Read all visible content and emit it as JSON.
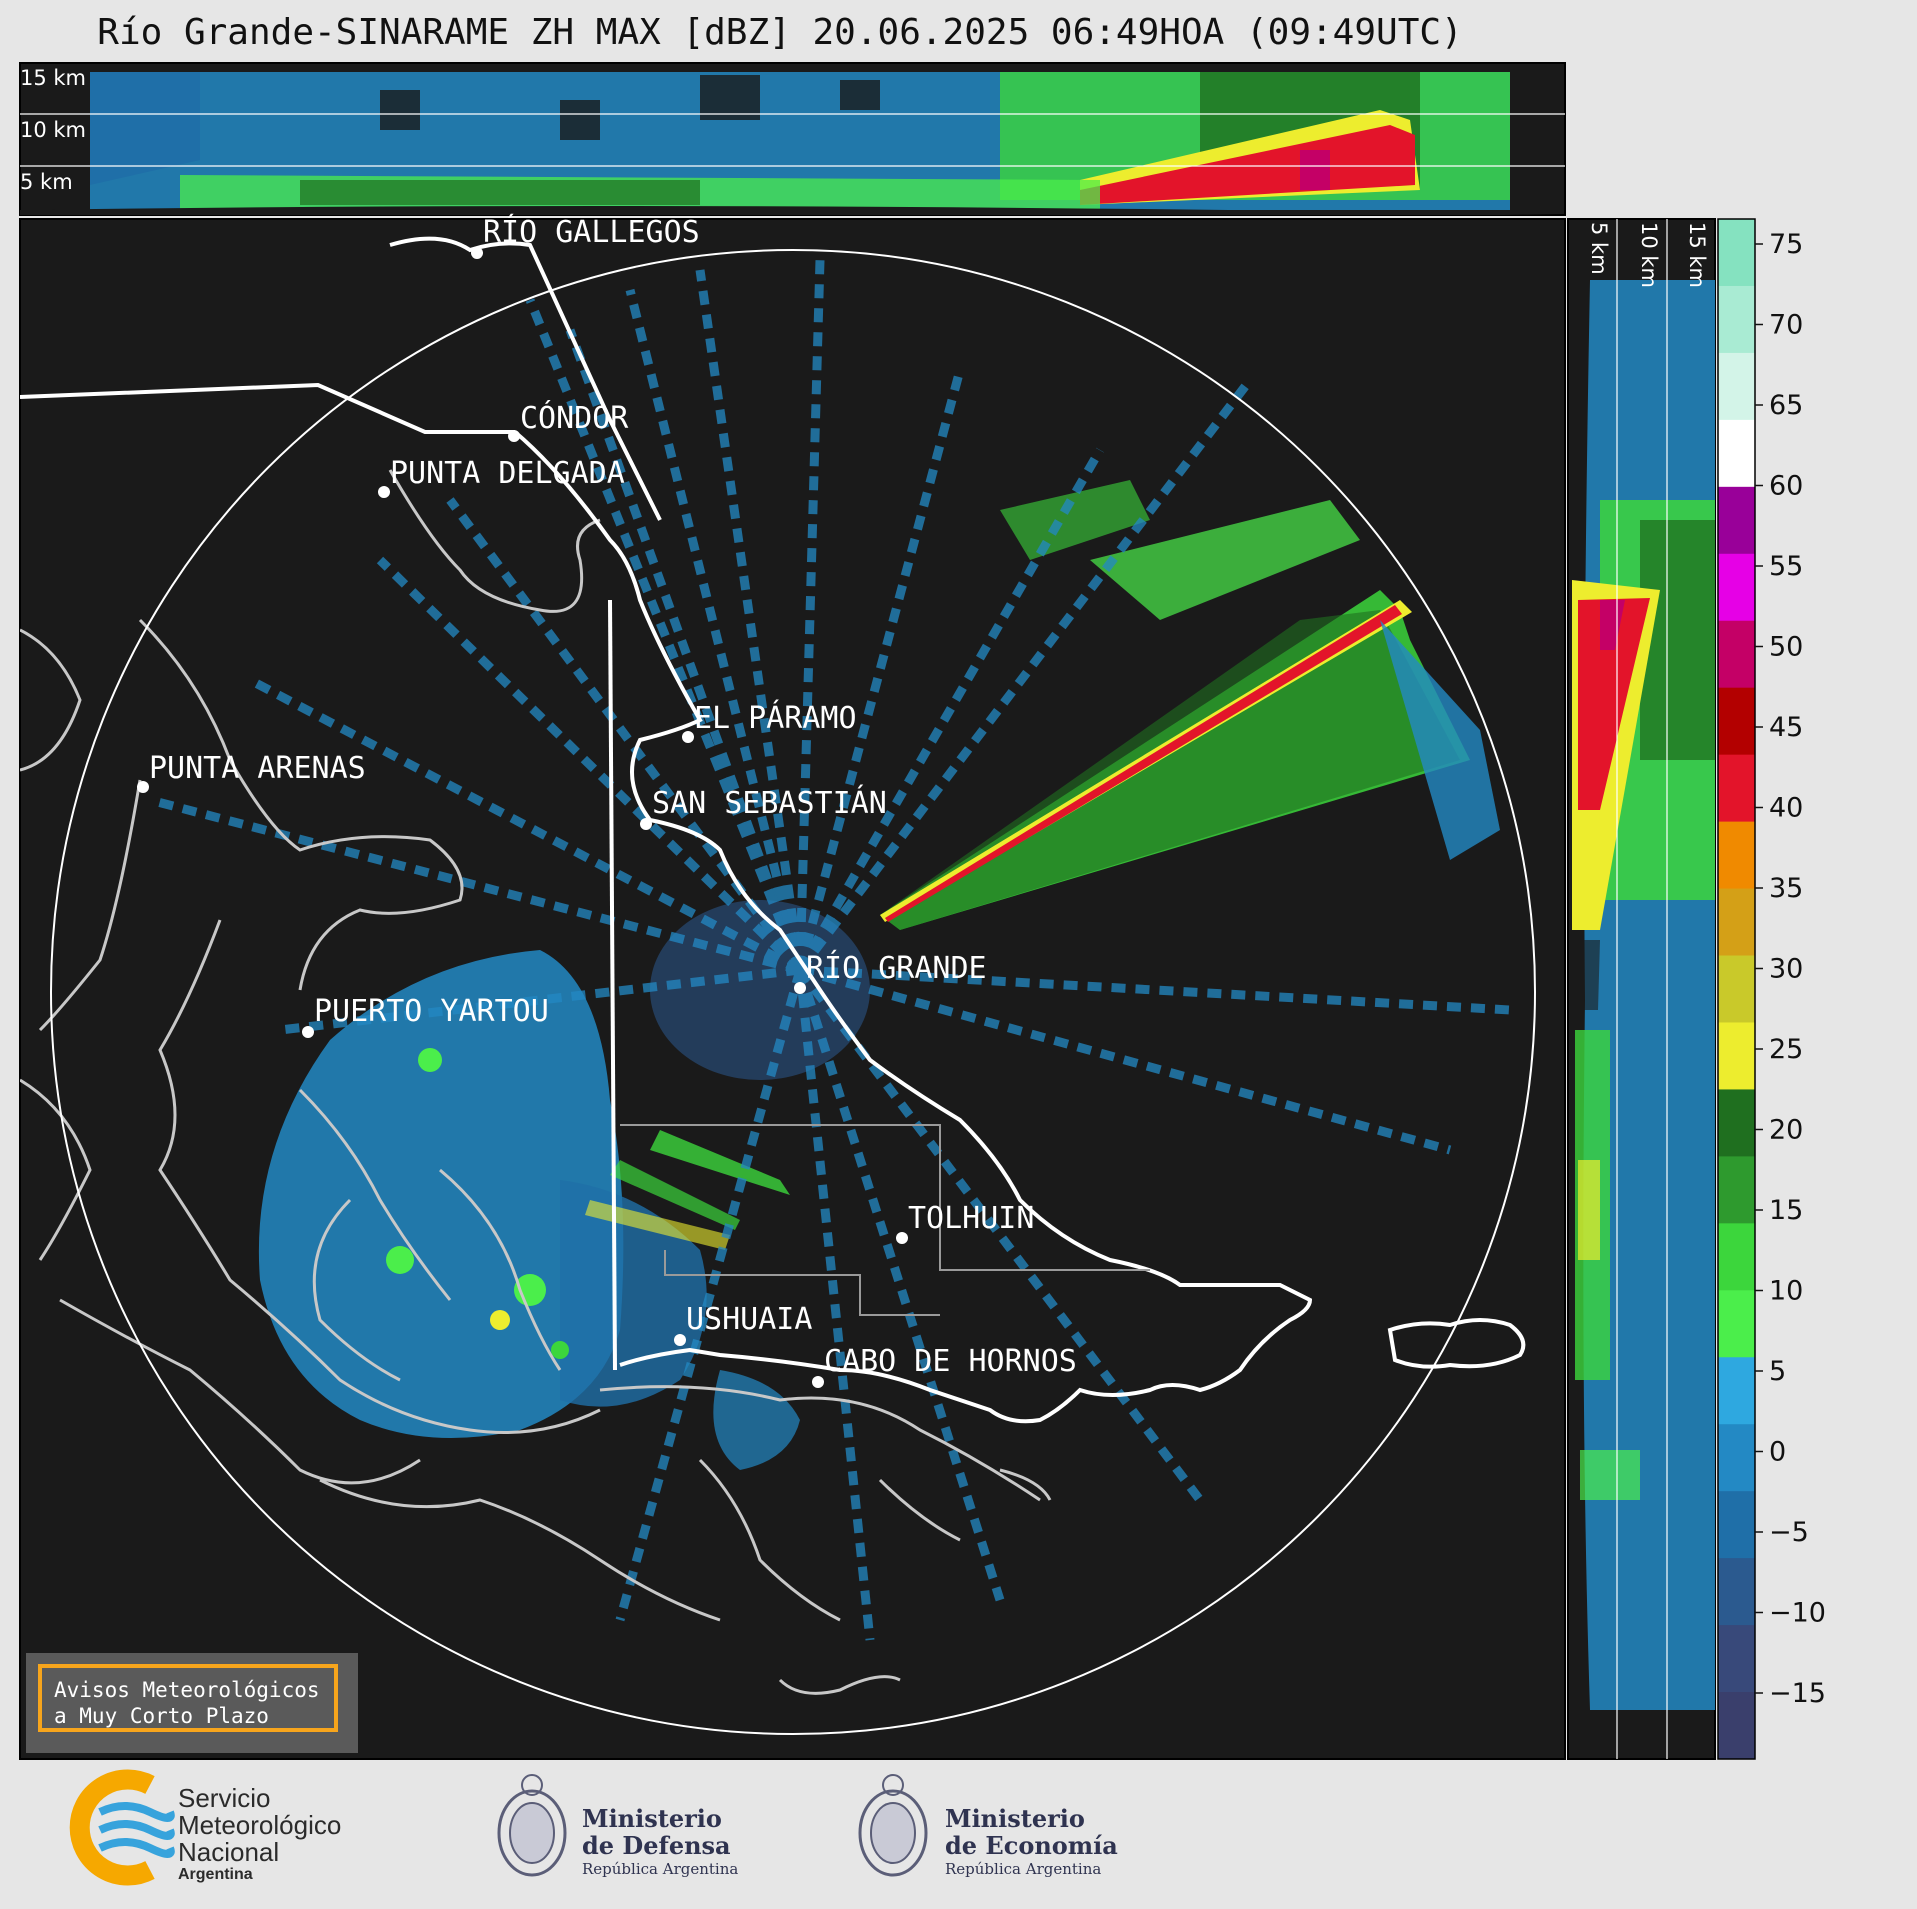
{
  "title": "Río Grande-SINARAME ZH MAX [dBZ] 20.06.2025 06:49HOA (09:49UTC)",
  "colorbar": {
    "ticks": [
      "75",
      "70",
      "65",
      "60",
      "55",
      "50",
      "45",
      "40",
      "35",
      "30",
      "25",
      "20",
      "15",
      "10",
      "5",
      "0",
      "−5",
      "−10",
      "−15"
    ],
    "colors": [
      "#85e2c0",
      "#a9ebd3",
      "#d3f4e8",
      "#ffffff",
      "#990099",
      "#e600e6",
      "#c40066",
      "#b30000",
      "#e3142a",
      "#f08a00",
      "#d4a017",
      "#c9c92a",
      "#eded2e",
      "#1f6f1f",
      "#2e9a2e",
      "#3cd63c",
      "#4bee4b",
      "#2ea8e0",
      "#2389c4",
      "#1f6fa8",
      "#2b5a8f",
      "#38497a",
      "#3a3f6c"
    ]
  },
  "top_panel": {
    "levels": [
      "15 km",
      "10 km",
      "5 km"
    ]
  },
  "side_panel": {
    "levels": [
      "5 km",
      "10 km",
      "15 km"
    ]
  },
  "cities": [
    {
      "name": "RÍO GALLEGOS"
    },
    {
      "name": "CÓNDOR"
    },
    {
      "name": "PUNTA DELGADA"
    },
    {
      "name": "EL PÁRAMO"
    },
    {
      "name": "PUNTA ARENAS"
    },
    {
      "name": "SAN SEBASTIÁN"
    },
    {
      "name": "RÍO GRANDE"
    },
    {
      "name": "PUERTO YARTOU"
    },
    {
      "name": "TOLHUIN"
    },
    {
      "name": "USHUAIA"
    },
    {
      "name": "CABO DE HORNOS"
    }
  ],
  "aviso": {
    "line1": "Avisos Meteorológicos",
    "line2": "a Muy Corto Plazo"
  },
  "logos": {
    "smn": {
      "line1": "Servicio",
      "line2": "Meteorológico",
      "line3": "Nacional",
      "line4": "Argentina"
    },
    "defensa": {
      "line1": "Ministerio",
      "line2": "de Defensa",
      "line3": "República Argentina"
    },
    "economia": {
      "line1": "Ministerio",
      "line2": "de Economía",
      "line3": "República Argentina"
    }
  }
}
